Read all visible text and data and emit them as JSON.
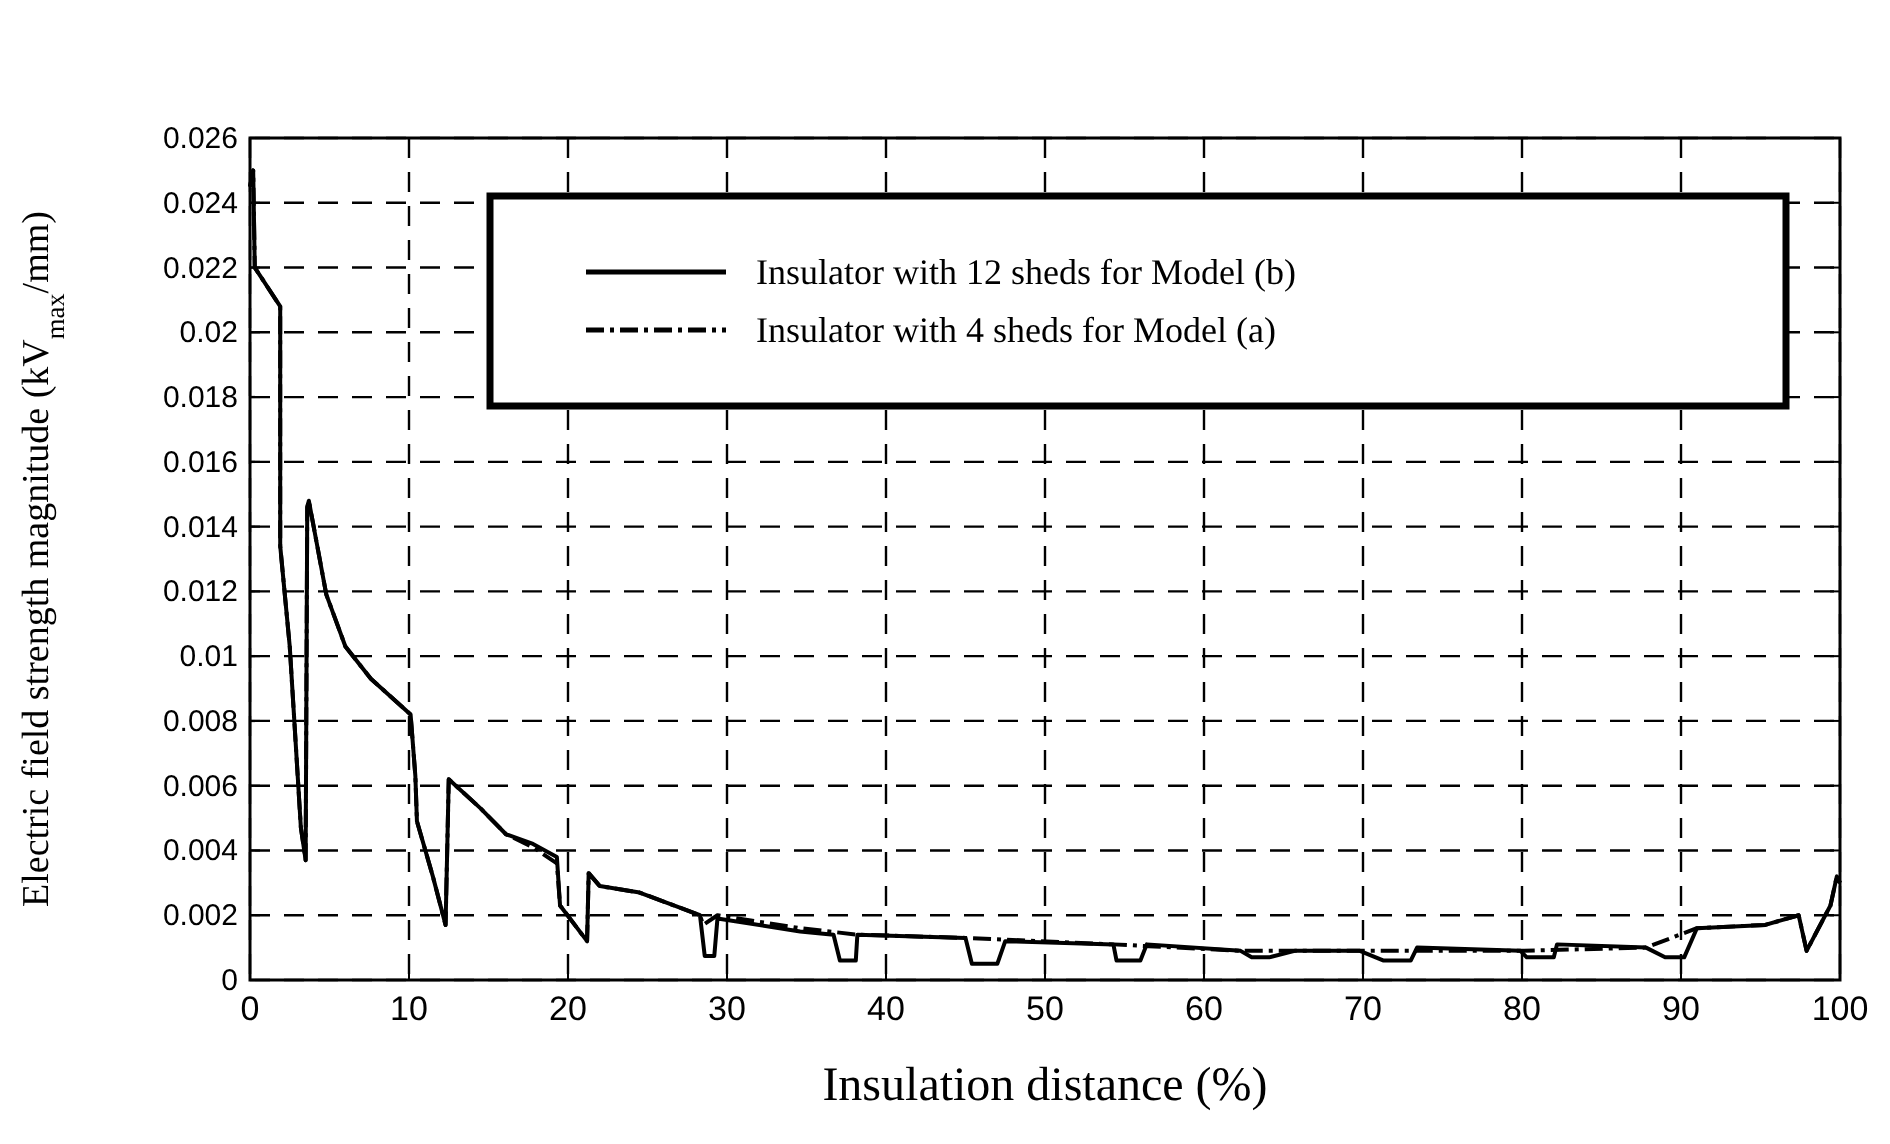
{
  "chart_data": {
    "type": "line",
    "xlabel": "Insulation distance (%)",
    "ylabel": "Electric field strength magnitude (kV$_{max}$/mm)",
    "xlim": [
      0,
      100
    ],
    "xticks": [
      0,
      10,
      20,
      30,
      40,
      50,
      60,
      70,
      80,
      90,
      100
    ],
    "ylim": [
      0,
      0.026
    ],
    "yticks": [
      0,
      0.002,
      0.004,
      0.006,
      0.008,
      0.01,
      0.012,
      0.014,
      0.016,
      0.018,
      0.02,
      0.022,
      0.024,
      0.026
    ],
    "grid": true,
    "legend": "top",
    "series": [
      {
        "name": "Insulator with 12 sheds for Model (b)",
        "color": "#000000",
        "line_style": "solid",
        "x": [
          0,
          0.2,
          0.3,
          1.9,
          1.9,
          2.5,
          3.2,
          3.5,
          3.6,
          3.7,
          4.8,
          6.0,
          7.6,
          10.1,
          10.4,
          10.5,
          11.5,
          12.3,
          12.5,
          14.5,
          16.1,
          17.8,
          19.3,
          19.5,
          21.2,
          21.3,
          22.0,
          24.5,
          28.3,
          28.6,
          29.2,
          29.4,
          34.6,
          36.7,
          37.1,
          38.1,
          38.2,
          45.0,
          45.4,
          47.0,
          47.5,
          54.3,
          54.5,
          56.0,
          56.4,
          62.3,
          63.0,
          64.1,
          65.7,
          69.8,
          71.3,
          73.0,
          73.4,
          79.9,
          80.3,
          82.0,
          82.2,
          87.8,
          89.0,
          90.2,
          91.0,
          95.3,
          97.4,
          97.9,
          99.4,
          99.8,
          100
        ],
        "values": [
          0.0245,
          0.025,
          0.022,
          0.0208,
          0.0134,
          0.0103,
          0.0047,
          0.0037,
          0.0146,
          0.0148,
          0.0119,
          0.0103,
          0.0093,
          0.0082,
          0.0063,
          0.0049,
          0.0032,
          0.0017,
          0.0062,
          0.0053,
          0.0045,
          0.0042,
          0.0038,
          0.0023,
          0.0012,
          0.0033,
          0.0029,
          0.0027,
          0.002,
          0.00074,
          0.00074,
          0.0019,
          0.0015,
          0.0014,
          0.0006,
          0.0006,
          0.0014,
          0.0013,
          0.0005,
          0.0005,
          0.0012,
          0.0011,
          0.0006,
          0.0006,
          0.0011,
          0.0009,
          0.0007,
          0.0007,
          0.0009,
          0.0009,
          0.0006,
          0.0006,
          0.001,
          0.0009,
          0.0007,
          0.0007,
          0.0011,
          0.001,
          0.0007,
          0.0007,
          0.0016,
          0.0017,
          0.002,
          0.0009,
          0.0023,
          0.0032,
          0.003
        ]
      },
      {
        "name": "Insulator with 4 sheds for Model (a)",
        "color": "#000000",
        "line_style": "dashed",
        "x": [
          0,
          0.2,
          0.3,
          1.9,
          1.9,
          2.5,
          3.2,
          3.5,
          3.6,
          3.7,
          4.8,
          6.0,
          7.6,
          10.1,
          10.4,
          10.5,
          11.5,
          12.3,
          12.5,
          14.5,
          16.1,
          17.8,
          19.3,
          19.5,
          21.2,
          21.3,
          22.0,
          24.5,
          28.3,
          28.5,
          29.4,
          34.6,
          38.2,
          45.0,
          54.3,
          62.3,
          69.8,
          79.9,
          87.8,
          91.0,
          95.3,
          97.4,
          97.9,
          99.4,
          99.8,
          100
        ],
        "values": [
          0.0245,
          0.025,
          0.022,
          0.0208,
          0.0134,
          0.0103,
          0.0047,
          0.0037,
          0.0146,
          0.0148,
          0.0119,
          0.0103,
          0.0093,
          0.0082,
          0.0063,
          0.0049,
          0.0032,
          0.0017,
          0.0062,
          0.0053,
          0.0045,
          0.0041,
          0.0036,
          0.0023,
          0.0012,
          0.0033,
          0.0029,
          0.0027,
          0.002,
          0.0017,
          0.002,
          0.0016,
          0.0014,
          0.0013,
          0.0011,
          0.0009,
          0.0009,
          0.0009,
          0.001,
          0.0016,
          0.0017,
          0.002,
          0.0009,
          0.0023,
          0.0032,
          0.003
        ]
      }
    ]
  }
}
